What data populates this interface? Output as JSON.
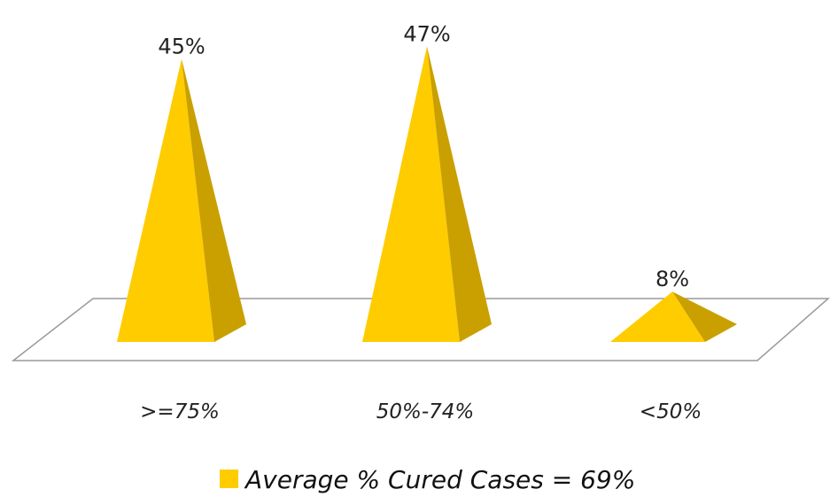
{
  "chart_data": {
    "type": "bar",
    "mark_shape": "3d-pyramid",
    "categories": [
      ">=75%",
      "50%-74%",
      "<50%"
    ],
    "series": [
      {
        "name": "Average % Cured Cases = 69%",
        "values": [
          45,
          47,
          8
        ],
        "labels": [
          "45%",
          "47%",
          "8%"
        ]
      }
    ],
    "ylim": [
      0,
      50
    ],
    "grid": false,
    "legend_position": "bottom",
    "colors": {
      "face_light": "#FFCC00",
      "face_dark": "#C9A000",
      "floor_stroke": "#9A9A9A"
    }
  }
}
